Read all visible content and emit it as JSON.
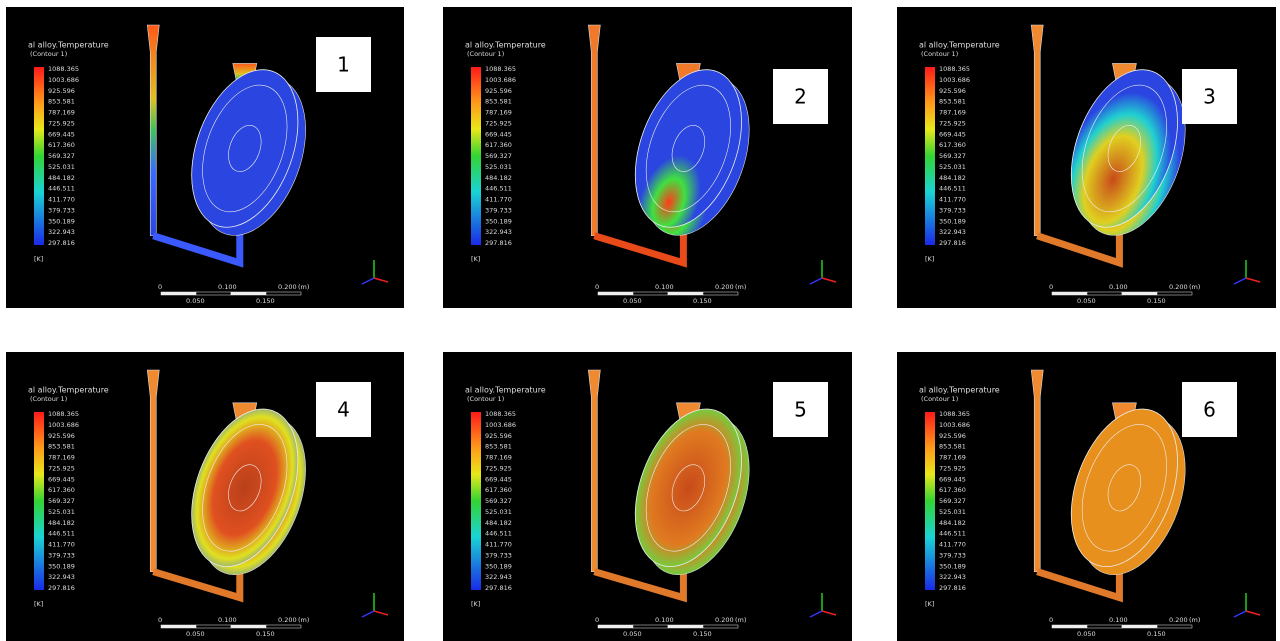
{
  "legend": {
    "title": "al alloy.Temperature",
    "subtitle": "(Contour 1)",
    "values": [
      "1088.365",
      "1003.686",
      "925.596",
      "853.581",
      "787.169",
      "725.925",
      "669.445",
      "617.360",
      "569.327",
      "525.031",
      "484.182",
      "446.511",
      "411.770",
      "379.733",
      "350.189",
      "322.943",
      "297.816"
    ],
    "unit": "[K]"
  },
  "scale": {
    "top": [
      "0",
      "0.100",
      "0.200",
      "(m)"
    ],
    "bottom": [
      "0.050",
      "0.150"
    ]
  },
  "panels": [
    {
      "label": "1"
    },
    {
      "label": "2"
    },
    {
      "label": "3"
    },
    {
      "label": "4"
    },
    {
      "label": "5"
    },
    {
      "label": "6"
    }
  ]
}
